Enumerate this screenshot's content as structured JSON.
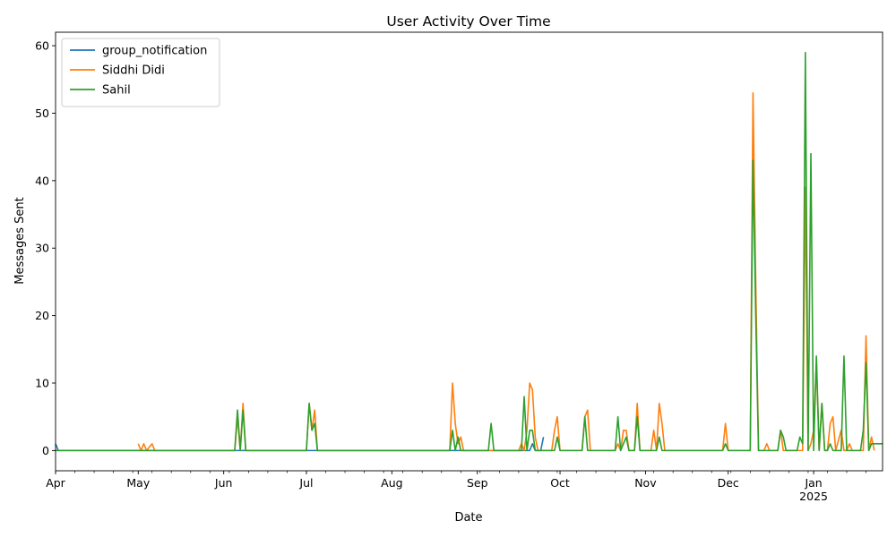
{
  "chart_data": {
    "type": "line",
    "title": "User Activity Over Time",
    "xlabel": "Date",
    "ylabel": "Messages Sent",
    "ylim": [
      -3,
      62
    ],
    "xlim": [
      "2024-04-01",
      "2025-01-26"
    ],
    "y_ticks": [
      0,
      10,
      20,
      30,
      40,
      50,
      60
    ],
    "x_ticks": [
      {
        "date": "2024-04-01",
        "label": "Apr",
        "sublabel": ""
      },
      {
        "date": "2024-05-01",
        "label": "May",
        "sublabel": ""
      },
      {
        "date": "2024-06-01",
        "label": "Jun",
        "sublabel": ""
      },
      {
        "date": "2024-07-01",
        "label": "Jul",
        "sublabel": ""
      },
      {
        "date": "2024-08-01",
        "label": "Aug",
        "sublabel": ""
      },
      {
        "date": "2024-09-01",
        "label": "Sep",
        "sublabel": ""
      },
      {
        "date": "2024-10-01",
        "label": "Oct",
        "sublabel": ""
      },
      {
        "date": "2024-11-01",
        "label": "Nov",
        "sublabel": ""
      },
      {
        "date": "2024-12-01",
        "label": "Dec",
        "sublabel": ""
      },
      {
        "date": "2025-01-01",
        "label": "Jan",
        "sublabel": "2025"
      }
    ],
    "grid": false,
    "legend_position": "upper-left",
    "series": [
      {
        "name": "group_notification",
        "color": "#1f77b4",
        "points": [
          [
            "2024-04-01",
            1
          ],
          [
            "2024-04-02",
            0
          ],
          [
            "2024-09-20",
            0
          ],
          [
            "2024-09-21",
            1
          ],
          [
            "2024-09-22",
            0
          ],
          [
            "2024-09-24",
            0
          ],
          [
            "2024-09-25",
            2
          ]
        ]
      },
      {
        "name": "Siddhi Didi",
        "color": "#ff7f0e",
        "points": [
          [
            "2024-05-01",
            1
          ],
          [
            "2024-05-02",
            0
          ],
          [
            "2024-05-03",
            1
          ],
          [
            "2024-05-04",
            0
          ],
          [
            "2024-05-06",
            1
          ],
          [
            "2024-05-07",
            0
          ],
          [
            "2024-06-05",
            0
          ],
          [
            "2024-06-06",
            5
          ],
          [
            "2024-06-07",
            0
          ],
          [
            "2024-06-08",
            7
          ],
          [
            "2024-06-09",
            0
          ],
          [
            "2024-07-01",
            0
          ],
          [
            "2024-07-02",
            7
          ],
          [
            "2024-07-03",
            3
          ],
          [
            "2024-07-04",
            6
          ],
          [
            "2024-07-05",
            0
          ],
          [
            "2024-08-22",
            0
          ],
          [
            "2024-08-23",
            10
          ],
          [
            "2024-08-24",
            4
          ],
          [
            "2024-08-25",
            1
          ],
          [
            "2024-08-26",
            2
          ],
          [
            "2024-08-27",
            0
          ],
          [
            "2024-09-16",
            0
          ],
          [
            "2024-09-17",
            1
          ],
          [
            "2024-09-18",
            0
          ],
          [
            "2024-09-19",
            3
          ],
          [
            "2024-09-20",
            10
          ],
          [
            "2024-09-21",
            9
          ],
          [
            "2024-09-22",
            2
          ],
          [
            "2024-09-23",
            0
          ],
          [
            "2024-09-28",
            0
          ],
          [
            "2024-09-29",
            3
          ],
          [
            "2024-09-30",
            5
          ],
          [
            "2024-10-01",
            0
          ],
          [
            "2024-10-09",
            0
          ],
          [
            "2024-10-10",
            5
          ],
          [
            "2024-10-11",
            6
          ],
          [
            "2024-10-12",
            0
          ],
          [
            "2024-10-21",
            0
          ],
          [
            "2024-10-22",
            1
          ],
          [
            "2024-10-23",
            0
          ],
          [
            "2024-10-24",
            3
          ],
          [
            "2024-10-25",
            3
          ],
          [
            "2024-10-26",
            0
          ],
          [
            "2024-10-28",
            0
          ],
          [
            "2024-10-29",
            7
          ],
          [
            "2024-10-30",
            0
          ],
          [
            "2024-11-03",
            0
          ],
          [
            "2024-11-04",
            3
          ],
          [
            "2024-11-05",
            0
          ],
          [
            "2024-11-06",
            7
          ],
          [
            "2024-11-07",
            4
          ],
          [
            "2024-11-08",
            0
          ],
          [
            "2024-11-29",
            0
          ],
          [
            "2024-11-30",
            4
          ],
          [
            "2024-12-01",
            0
          ],
          [
            "2024-12-09",
            0
          ],
          [
            "2024-12-10",
            53
          ],
          [
            "2024-12-11",
            25
          ],
          [
            "2024-12-12",
            0
          ],
          [
            "2024-12-14",
            0
          ],
          [
            "2024-12-15",
            1
          ],
          [
            "2024-12-16",
            0
          ],
          [
            "2024-12-19",
            0
          ],
          [
            "2024-12-20",
            3
          ],
          [
            "2024-12-21",
            0
          ],
          [
            "2024-12-22",
            0
          ],
          [
            "2024-12-28",
            0
          ],
          [
            "2024-12-29",
            39
          ],
          [
            "2024-12-30",
            0
          ],
          [
            "2024-12-31",
            1
          ],
          [
            "2025-01-01",
            3
          ],
          [
            "2025-01-02",
            13
          ],
          [
            "2025-01-03",
            0
          ],
          [
            "2025-01-04",
            7
          ],
          [
            "2025-01-05",
            0
          ],
          [
            "2025-01-06",
            0
          ],
          [
            "2025-01-07",
            4
          ],
          [
            "2025-01-08",
            5
          ],
          [
            "2025-01-09",
            0
          ],
          [
            "2025-01-11",
            3
          ],
          [
            "2025-01-12",
            0
          ],
          [
            "2025-01-13",
            0
          ],
          [
            "2025-01-14",
            1
          ],
          [
            "2025-01-15",
            0
          ],
          [
            "2025-01-19",
            0
          ],
          [
            "2025-01-20",
            17
          ],
          [
            "2025-01-21",
            0
          ],
          [
            "2025-01-22",
            2
          ],
          [
            "2025-01-23",
            0
          ]
        ]
      },
      {
        "name": "Sahil",
        "color": "#2ca02c",
        "points": [
          [
            "2024-04-01",
            0
          ],
          [
            "2024-06-05",
            0
          ],
          [
            "2024-06-06",
            6
          ],
          [
            "2024-06-07",
            0
          ],
          [
            "2024-06-08",
            6
          ],
          [
            "2024-06-09",
            0
          ],
          [
            "2024-07-01",
            0
          ],
          [
            "2024-07-02",
            7
          ],
          [
            "2024-07-03",
            3
          ],
          [
            "2024-07-04",
            4
          ],
          [
            "2024-07-05",
            0
          ],
          [
            "2024-08-22",
            0
          ],
          [
            "2024-08-23",
            3
          ],
          [
            "2024-08-24",
            0
          ],
          [
            "2024-08-25",
            2
          ],
          [
            "2024-08-26",
            0
          ],
          [
            "2024-09-05",
            0
          ],
          [
            "2024-09-06",
            4
          ],
          [
            "2024-09-07",
            0
          ],
          [
            "2024-09-17",
            0
          ],
          [
            "2024-09-18",
            8
          ],
          [
            "2024-09-19",
            0
          ],
          [
            "2024-09-20",
            3
          ],
          [
            "2024-09-21",
            3
          ],
          [
            "2024-09-22",
            0
          ],
          [
            "2024-09-29",
            0
          ],
          [
            "2024-09-30",
            2
          ],
          [
            "2024-10-01",
            0
          ],
          [
            "2024-10-09",
            0
          ],
          [
            "2024-10-10",
            5
          ],
          [
            "2024-10-11",
            0
          ],
          [
            "2024-10-21",
            0
          ],
          [
            "2024-10-22",
            5
          ],
          [
            "2024-10-23",
            0
          ],
          [
            "2024-10-25",
            2
          ],
          [
            "2024-10-26",
            0
          ],
          [
            "2024-10-28",
            0
          ],
          [
            "2024-10-29",
            5
          ],
          [
            "2024-10-30",
            0
          ],
          [
            "2024-11-05",
            0
          ],
          [
            "2024-11-06",
            2
          ],
          [
            "2024-11-07",
            0
          ],
          [
            "2024-11-29",
            0
          ],
          [
            "2024-11-30",
            1
          ],
          [
            "2024-12-01",
            0
          ],
          [
            "2024-12-09",
            0
          ],
          [
            "2024-12-10",
            43
          ],
          [
            "2024-12-11",
            20
          ],
          [
            "2024-12-12",
            0
          ],
          [
            "2024-12-19",
            0
          ],
          [
            "2024-12-20",
            3
          ],
          [
            "2024-12-21",
            2
          ],
          [
            "2024-12-22",
            0
          ],
          [
            "2024-12-26",
            0
          ],
          [
            "2024-12-27",
            2
          ],
          [
            "2024-12-28",
            1
          ],
          [
            "2024-12-29",
            59
          ],
          [
            "2024-12-30",
            0
          ],
          [
            "2024-12-31",
            44
          ],
          [
            "2025-01-01",
            0
          ],
          [
            "2025-01-02",
            14
          ],
          [
            "2025-01-03",
            0
          ],
          [
            "2025-01-04",
            7
          ],
          [
            "2025-01-05",
            0
          ],
          [
            "2025-01-06",
            0
          ],
          [
            "2025-01-07",
            1
          ],
          [
            "2025-01-08",
            0
          ],
          [
            "2025-01-11",
            0
          ],
          [
            "2025-01-12",
            14
          ],
          [
            "2025-01-13",
            0
          ],
          [
            "2025-01-18",
            0
          ],
          [
            "2025-01-19",
            3
          ],
          [
            "2025-01-20",
            13
          ],
          [
            "2025-01-21",
            0
          ],
          [
            "2025-01-22",
            1
          ],
          [
            "2025-01-26",
            1
          ]
        ]
      }
    ]
  }
}
